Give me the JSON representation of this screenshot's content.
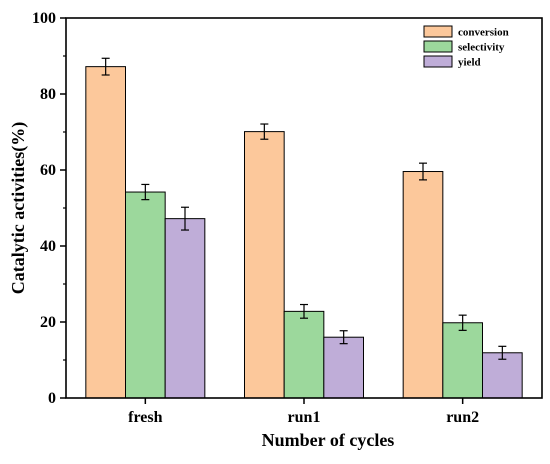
{
  "chart_data": {
    "type": "bar",
    "categories": [
      "fresh",
      "run1",
      "run2"
    ],
    "series": [
      {
        "name": "conversion",
        "values": [
          87.2,
          70.1,
          59.6
        ],
        "errors": [
          2.2,
          2.0,
          2.2
        ],
        "color": "#FCC89B"
      },
      {
        "name": "selectivity",
        "values": [
          54.2,
          22.8,
          19.8
        ],
        "errors": [
          2.0,
          1.8,
          2.0
        ],
        "color": "#9CD89C"
      },
      {
        "name": "yield",
        "values": [
          47.2,
          16.0,
          11.9
        ],
        "errors": [
          3.0,
          1.7,
          1.7
        ],
        "color": "#BFADD8"
      }
    ],
    "xlabel": "Number of cycles",
    "ylabel": "Catalytic activities(%)",
    "ylim": [
      0,
      100
    ],
    "yticks": [
      "0",
      "20",
      "40",
      "60",
      "80",
      "100"
    ],
    "legend_position": "top-right"
  }
}
